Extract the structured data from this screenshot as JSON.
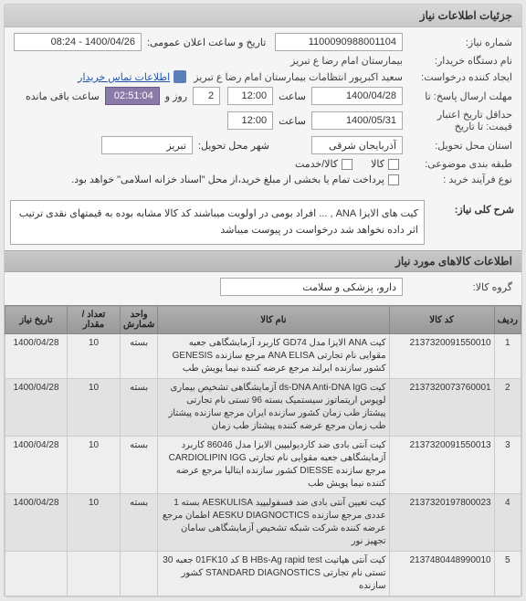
{
  "panel_title": "جزئیات اطلاعات نیاز",
  "header": {
    "label_need_no": "شماره نیاز:",
    "need_no": "1100090988001104",
    "label_pub_datetime": "تاریخ و ساعت اعلان عمومی:",
    "pub_datetime": "1400/04/26 - 08:24",
    "label_buyer": "نام دستگاه خریدار:",
    "buyer": "بیمارستان امام رضا  ع  تبریز",
    "label_creator": "ایجاد کننده درخواست:",
    "creator": "سعید اکبرپور انتظامات بیمارستان امام رضا  ع  تبریز",
    "info_link": "اطلاعات تماس خریدار",
    "label_deadline": "مهلت ارسال پاسخ: تا",
    "deadline_date": "1400/04/28",
    "label_hour": "ساعت",
    "deadline_time": "12:00",
    "label_day": "روز و",
    "days_left": "2",
    "time_left": "02:51:04",
    "label_remain": "ساعت باقی مانده",
    "label_credit": "حداقل تاریخ اعتبار",
    "label_credit2": "قیمت: تا تاریخ",
    "credit_date": "1400/05/31",
    "credit_time": "12:00",
    "label_province": "استان محل تحویل:",
    "province": "آذربایجان شرقی",
    "label_city": "شهر محل تحویل:",
    "city": "تبریز",
    "label_sub_topic": "طبقه بندی موضوعی:",
    "sub_goods": "کالا",
    "sub_service": "کالا/خدمت",
    "label_buy_process": "نوع فرآیند خرید :",
    "partial_pay": "پرداخت تمام یا بخشی از مبلغ خرید،از محل \"اسناد خزانه اسلامی\" خواهد بود."
  },
  "desc": {
    "label": "شرح کلی نیاز:",
    "text": "کیت های الایزا ANA , ... افراد بومی در اولویت میباشند کد کالا مشابه بوده به قیمتهای نقدی ترتیب اثر داده نخواهد شد درخواست در پیوست میباشد"
  },
  "goods_section": "اطلاعات کالاهای مورد نیاز",
  "group": {
    "label": "گروه کالا:",
    "value": "دارو، پزشکی و سلامت"
  },
  "table": {
    "headers": [
      "ردیف",
      "کد کالا",
      "نام کالا",
      "واحد شمارش",
      "تعداد / مقدار",
      "تاریخ نیاز"
    ],
    "rows": [
      {
        "idx": "1",
        "code": "2137320091550010",
        "name": "کیت ANA الایزا مدل GD74 کاربرد آزمایشگاهی جعبه مقوایی نام تجارتی ANA ELISA مرجع سازنده GENESIS کشور سازنده ایرلند مرجع عرضه کننده نیما پویش طب",
        "unit": "بسته",
        "qty": "10",
        "date": "1400/04/28"
      },
      {
        "idx": "2",
        "code": "2137320073760001",
        "name": "کیت ds-DNA Anti-DNA IgG آزمایشگاهی تشخیص بیماری لوپوس اریتماتوز سیستمیک بسته 96 تستی نام تجارتی پیشتاز طب زمان کشور سازنده ایران مرجع سازنده پیشتاز طب زمان مرجع عرضه کننده پیشتاز طب زمان",
        "unit": "بسته",
        "qty": "10",
        "date": "1400/04/28"
      },
      {
        "idx": "3",
        "code": "2137320091550013",
        "name": "کیت آنتی بادی ضد کاردیولیپین الایزا مدل 86046 کاربرد آزمایشگاهی جعبه مقوایی نام تجارتی CARDIOLIPIN IGG مرجع سازنده DIESSE کشور سازنده ایتالیا مرجع عرضه کننده نیما پویش طب",
        "unit": "بسته",
        "qty": "10",
        "date": "1400/04/28"
      },
      {
        "idx": "4",
        "code": "2137320197800023",
        "name": "کیت تعیین آنتی بادی ضد فسفولیپید AESKULISA بسته 1 عددی مرجع سازنده AESKU DIAGNOCTICS اطمان مرجع عرضه کننده شرکت شبکه تشخیص آزمایشگاهی سامان تجهیز نور",
        "unit": "بسته",
        "qty": "10",
        "date": "1400/04/28"
      },
      {
        "idx": "5",
        "code": "2137480448990010",
        "name": "کیت آنتی هپاتیت B HBs-Ag rapid test کد 01FK10 جعبه 30 تستی نام تجارتی STANDARD DIAGNOSTICS کشور سازنده",
        "unit": "",
        "qty": "",
        "date": ""
      }
    ]
  },
  "colors": {
    "header_bg": "#d0d0d0",
    "field_bg": "#ffffff",
    "accent": "#8a7aa8"
  }
}
